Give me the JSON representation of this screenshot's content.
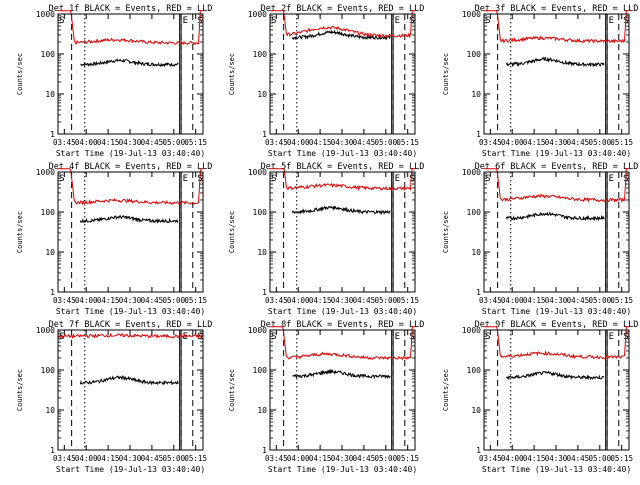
{
  "figure": {
    "y_label": "Counts/sec",
    "x_label": "Start Time (19-Jul-13 03:40:40)",
    "x_ticks": [
      "03:45",
      "04:00",
      "04:15",
      "04:30",
      "04:45",
      "05:00",
      "05:15"
    ],
    "y_ticks": [
      "1",
      "10",
      "100",
      "1000"
    ],
    "colors": {
      "events": "#000000",
      "lld": "#dd0000",
      "axis": "#000000"
    },
    "region_markers": [
      "S",
      "E",
      "S"
    ]
  },
  "chart_data": [
    {
      "type": "line",
      "title": "Det 1f BLACK = Events, RED = LLD",
      "x_range": [
        "03:40:40",
        "05:20"
      ],
      "y_scale": "log",
      "ylim": [
        1,
        1000
      ],
      "series": [
        {
          "name": "Events",
          "color": "#000000",
          "start": "03:56",
          "end": "05:03",
          "level": 55,
          "bump": 1.25
        },
        {
          "name": "LLD",
          "color": "#dd0000",
          "start": "03:40:40",
          "end": "05:20",
          "level": 190,
          "bump": 1.2,
          "spike_start": true,
          "spike_end": true
        }
      ]
    },
    {
      "type": "line",
      "title": "Det 2f BLACK = Events, RED = LLD",
      "x_range": [
        "03:40:40",
        "05:20"
      ],
      "y_scale": "log",
      "ylim": [
        1,
        1000
      ],
      "series": [
        {
          "name": "Events",
          "color": "#000000",
          "start": "03:56",
          "end": "05:03",
          "level": 260,
          "bump": 1.35
        },
        {
          "name": "LLD",
          "color": "#dd0000",
          "start": "03:40:40",
          "end": "05:20",
          "level": 290,
          "bump": 1.6,
          "spike_start": true,
          "spike_end": true
        }
      ]
    },
    {
      "type": "line",
      "title": "Det 3f BLACK = Events, RED = LLD",
      "x_range": [
        "03:40:40",
        "05:20"
      ],
      "y_scale": "log",
      "ylim": [
        1,
        1000
      ],
      "series": [
        {
          "name": "Events",
          "color": "#000000",
          "start": "03:56",
          "end": "05:03",
          "level": 55,
          "bump": 1.35
        },
        {
          "name": "LLD",
          "color": "#dd0000",
          "start": "03:40:40",
          "end": "05:20",
          "level": 210,
          "bump": 1.2,
          "spike_start": true,
          "spike_end": true
        }
      ]
    },
    {
      "type": "line",
      "title": "Det 4f BLACK = Events, RED = LLD",
      "x_range": [
        "03:40:40",
        "05:20"
      ],
      "y_scale": "log",
      "ylim": [
        1,
        1000
      ],
      "series": [
        {
          "name": "Events",
          "color": "#000000",
          "start": "03:56",
          "end": "05:03",
          "level": 60,
          "bump": 1.25
        },
        {
          "name": "LLD",
          "color": "#dd0000",
          "start": "03:40:40",
          "end": "05:20",
          "level": 170,
          "bump": 1.15,
          "spike_start": true,
          "spike_end": true
        }
      ]
    },
    {
      "type": "line",
      "title": "Det 5f BLACK = Events, RED = LLD",
      "x_range": [
        "03:40:40",
        "05:20"
      ],
      "y_scale": "log",
      "ylim": [
        1,
        1000
      ],
      "series": [
        {
          "name": "Events",
          "color": "#000000",
          "start": "03:56",
          "end": "05:03",
          "level": 100,
          "bump": 1.3
        },
        {
          "name": "LLD",
          "color": "#dd0000",
          "start": "03:40:40",
          "end": "05:20",
          "level": 390,
          "bump": 1.2,
          "spike_start": true,
          "spike_end": true
        }
      ]
    },
    {
      "type": "line",
      "title": "Det 6f BLACK = Events, RED = LLD",
      "x_range": [
        "03:40:40",
        "05:20"
      ],
      "y_scale": "log",
      "ylim": [
        1,
        1000
      ],
      "series": [
        {
          "name": "Events",
          "color": "#000000",
          "start": "03:56",
          "end": "05:03",
          "level": 70,
          "bump": 1.3
        },
        {
          "name": "LLD",
          "color": "#dd0000",
          "start": "03:40:40",
          "end": "05:20",
          "level": 200,
          "bump": 1.25,
          "spike_start": true,
          "spike_end": true
        }
      ]
    },
    {
      "type": "line",
      "title": "Det 7f BLACK = Events, RED = LLD",
      "x_range": [
        "03:40:40",
        "05:20"
      ],
      "y_scale": "log",
      "ylim": [
        1,
        1000
      ],
      "series": [
        {
          "name": "Events",
          "color": "#000000",
          "start": "03:56",
          "end": "05:03",
          "level": 48,
          "bump": 1.35
        },
        {
          "name": "LLD",
          "color": "#dd0000",
          "start": "03:40:40",
          "end": "05:20",
          "level": 700,
          "bump": 1.05,
          "spike_start": false,
          "spike_end": false
        }
      ]
    },
    {
      "type": "line",
      "title": "Det 8f BLACK = Events, RED = LLD",
      "x_range": [
        "03:40:40",
        "05:20"
      ],
      "y_scale": "log",
      "ylim": [
        1,
        1000
      ],
      "series": [
        {
          "name": "Events",
          "color": "#000000",
          "start": "03:56",
          "end": "05:03",
          "level": 70,
          "bump": 1.3
        },
        {
          "name": "LLD",
          "color": "#dd0000",
          "start": "03:40:40",
          "end": "05:20",
          "level": 200,
          "bump": 1.25,
          "spike_start": true,
          "spike_end": true
        }
      ]
    },
    {
      "type": "line",
      "title": "Det 9f BLACK = Events, RED = LLD",
      "x_range": [
        "03:40:40",
        "05:20"
      ],
      "y_scale": "log",
      "ylim": [
        1,
        1000
      ],
      "series": [
        {
          "name": "Events",
          "color": "#000000",
          "start": "03:56",
          "end": "05:03",
          "level": 65,
          "bump": 1.3
        },
        {
          "name": "LLD",
          "color": "#dd0000",
          "start": "03:40:40",
          "end": "05:20",
          "level": 210,
          "bump": 1.25,
          "spike_start": true,
          "spike_end": true
        }
      ]
    }
  ]
}
